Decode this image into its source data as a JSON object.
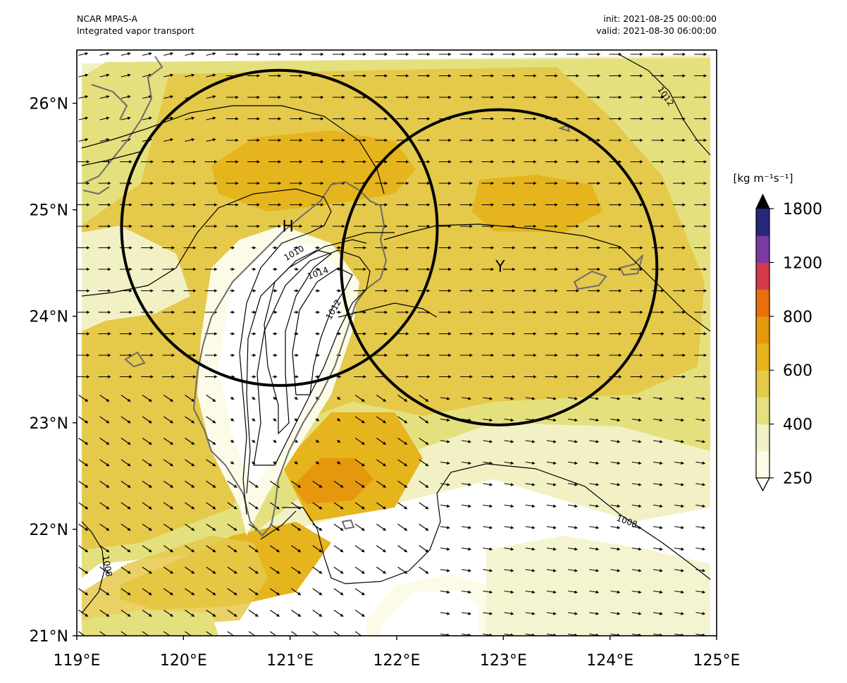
{
  "header": {
    "model": "NCAR MPAS-A",
    "field": "Integrated vapor transport",
    "init": "init: 2021-08-25 00:00:00",
    "valid": "valid: 2021-08-30 06:00:00"
  },
  "map": {
    "lon_range": [
      119,
      125
    ],
    "lat_range": [
      21,
      26.5
    ],
    "x_ticks": [
      {
        "value": 119,
        "label": "119°E"
      },
      {
        "value": 120,
        "label": "120°E"
      },
      {
        "value": 121,
        "label": "121°E"
      },
      {
        "value": 122,
        "label": "122°E"
      },
      {
        "value": 123,
        "label": "123°E"
      },
      {
        "value": 124,
        "label": "124°E"
      },
      {
        "value": 125,
        "label": "125°E"
      }
    ],
    "y_ticks": [
      {
        "value": 21,
        "label": "21°N"
      },
      {
        "value": 22,
        "label": "22°N"
      },
      {
        "value": 23,
        "label": "23°N"
      },
      {
        "value": 24,
        "label": "24°N"
      },
      {
        "value": 25,
        "label": "25°N"
      },
      {
        "value": 26,
        "label": "26°N"
      }
    ],
    "markers": [
      {
        "name": "H",
        "label": "H",
        "lon": 120.98,
        "lat": 24.85
      },
      {
        "name": "Y",
        "label": "Y",
        "lon": 122.97,
        "lat": 24.47
      }
    ],
    "circles": [
      {
        "center_lon": 120.9,
        "center_lat": 24.83,
        "radius_deg": 1.48
      },
      {
        "center_lon": 122.96,
        "center_lat": 24.46,
        "radius_deg": 1.48
      }
    ],
    "isobar_labels": [
      {
        "text": "1010",
        "lon": 121.05,
        "lat": 24.57,
        "rot": -30
      },
      {
        "text": "1014",
        "lon": 121.27,
        "lat": 24.38,
        "rot": -20
      },
      {
        "text": "1012",
        "lon": 121.43,
        "lat": 24.05,
        "rot": -60
      },
      {
        "text": "1012",
        "lon": 124.5,
        "lat": 26.05,
        "rot": 55
      },
      {
        "text": "1008",
        "lon": 124.15,
        "lat": 22.05,
        "rot": 20
      },
      {
        "text": "1008",
        "lon": 119.26,
        "lat": 21.65,
        "rot": 80
      }
    ],
    "wind_vectors": {
      "dominant_direction": "westward",
      "southern_region_direction": "southwest"
    }
  },
  "colorbar": {
    "unit_label": "[kg m⁻¹s⁻¹]",
    "levels": [
      250,
      300,
      400,
      500,
      600,
      700,
      800,
      1000,
      1200,
      1500,
      1800
    ],
    "tick_labels": [
      "250",
      "400",
      "600",
      "800",
      "1200",
      "1800"
    ],
    "colors": [
      "#fcfbe8",
      "#f2f1c6",
      "#e4e07e",
      "#e5c94a",
      "#e6b41c",
      "#e5980e",
      "#e86f0c",
      "#d53a48",
      "#7a3aa3",
      "#26287a"
    ],
    "extend_max_color": "#000000"
  }
}
